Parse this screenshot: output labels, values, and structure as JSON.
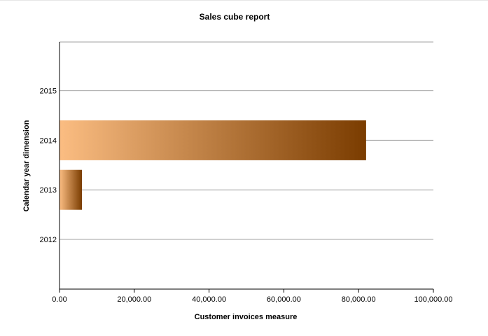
{
  "colors": {
    "bar_gradient_start": "#fbbd82",
    "bar_gradient_end": "#7a3c00",
    "gridline": "#a0a0a0",
    "axis": "#000000"
  },
  "chart_data": {
    "type": "bar",
    "orientation": "horizontal",
    "title": "Sales cube report",
    "xlabel": "Customer invoices measure",
    "ylabel": "Calendar year dimension",
    "categories": [
      "2012",
      "2013",
      "2014",
      "2015"
    ],
    "values": [
      0,
      6000,
      82000,
      0
    ],
    "xlim": [
      0,
      100000
    ],
    "x_ticks": [
      0,
      20000,
      40000,
      60000,
      80000,
      100000
    ],
    "x_tick_labels": [
      "0.00",
      "20,000.00",
      "40,000.00",
      "60,000.00",
      "80,000.00",
      "100,000.00"
    ],
    "grid": true,
    "legend": "none"
  }
}
